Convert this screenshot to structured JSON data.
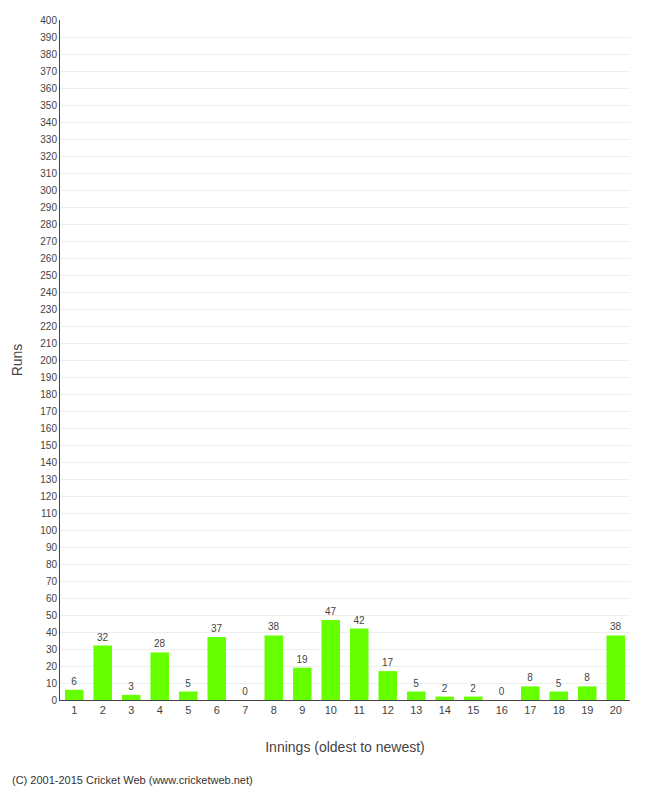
{
  "chart_data": {
    "type": "bar",
    "categories": [
      "1",
      "2",
      "3",
      "4",
      "5",
      "6",
      "7",
      "8",
      "9",
      "10",
      "11",
      "12",
      "13",
      "14",
      "15",
      "16",
      "17",
      "18",
      "19",
      "20"
    ],
    "values": [
      6,
      32,
      3,
      28,
      5,
      37,
      0,
      38,
      19,
      47,
      42,
      17,
      5,
      2,
      2,
      0,
      8,
      5,
      8,
      38
    ],
    "color": "#66ff00",
    "xlabel": "Innings (oldest to newest)",
    "ylabel": "Runs",
    "ylim": [
      0,
      400
    ],
    "yticks": [
      0,
      10,
      20,
      30,
      40,
      50,
      60,
      70,
      80,
      90,
      100,
      110,
      120,
      130,
      140,
      150,
      160,
      170,
      180,
      190,
      200,
      210,
      220,
      230,
      240,
      250,
      260,
      270,
      280,
      290,
      300,
      310,
      320,
      330,
      340,
      350,
      360,
      370,
      380,
      390,
      400
    ],
    "grid": true,
    "data_labels": true,
    "annotations": [
      "(C) 2001-2015 Cricket Web (www.cricketweb.net)"
    ]
  }
}
